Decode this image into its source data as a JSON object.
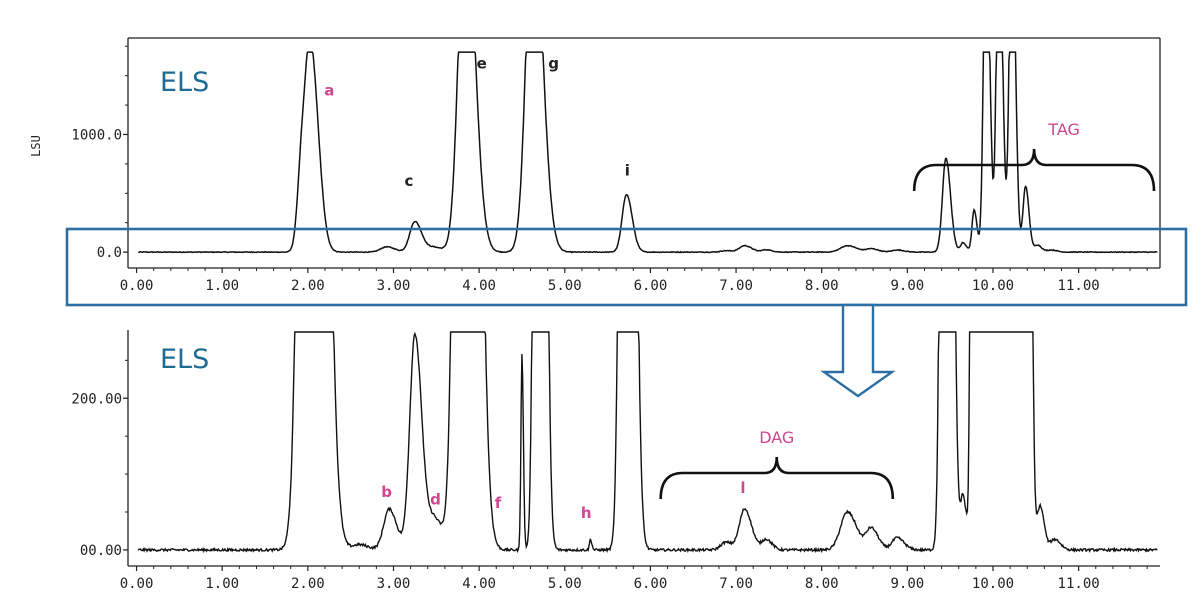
{
  "chart_data": [
    {
      "type": "line",
      "detector_label": "ELS",
      "ylabel": "LSU",
      "y_tick_labels": [
        "0.0",
        "1000.0"
      ],
      "y_ticks": [
        0,
        1000
      ],
      "ylim": [
        -50,
        1820
      ],
      "xlim": [
        -0.1,
        11.95
      ],
      "x_tick_labels": [
        "0.00",
        "1.00",
        "2.00",
        "3.00",
        "4.00",
        "5.00",
        "6.00",
        "7.00",
        "8.00",
        "9.00",
        "10.00",
        "11.00"
      ],
      "annotations": [
        {
          "label": "a",
          "x": 2.25,
          "y": 1330,
          "color": "pink"
        },
        {
          "label": "c",
          "x": 3.18,
          "y": 560,
          "color": "dark"
        },
        {
          "label": "e",
          "x": 4.03,
          "y": 1560,
          "color": "dark"
        },
        {
          "label": "g",
          "x": 4.87,
          "y": 1560,
          "color": "dark"
        },
        {
          "label": "i",
          "x": 5.73,
          "y": 650,
          "color": "dark"
        }
      ],
      "group": {
        "label": "TAG",
        "x_from": 9.08,
        "x_to": 11.88
      },
      "peaks": [
        {
          "x": 1.93,
          "y": 700,
          "w": 0.05
        },
        {
          "x": 2.04,
          "y": 1620,
          "w": 0.065
        },
        {
          "x": 2.92,
          "y": 45,
          "w": 0.07
        },
        {
          "x": 3.25,
          "y": 260,
          "w": 0.06
        },
        {
          "x": 3.48,
          "y": 40,
          "w": 0.07
        },
        {
          "x": 3.84,
          "y": 3000,
          "w": 0.08
        },
        {
          "x": 4.63,
          "y": 3000,
          "w": 0.08
        },
        {
          "x": 5.72,
          "y": 490,
          "w": 0.05
        },
        {
          "x": 6.88,
          "y": 12,
          "w": 0.06
        },
        {
          "x": 7.1,
          "y": 55,
          "w": 0.06
        },
        {
          "x": 7.35,
          "y": 20,
          "w": 0.05
        },
        {
          "x": 8.3,
          "y": 55,
          "w": 0.08
        },
        {
          "x": 8.58,
          "y": 28,
          "w": 0.06
        },
        {
          "x": 8.88,
          "y": 18,
          "w": 0.06
        },
        {
          "x": 9.45,
          "y": 800,
          "w": 0.04
        },
        {
          "x": 9.65,
          "y": 80,
          "w": 0.03
        },
        {
          "x": 9.78,
          "y": 360,
          "w": 0.025
        },
        {
          "x": 9.92,
          "y": 3000,
          "w": 0.03
        },
        {
          "x": 10.07,
          "y": 3000,
          "w": 0.03
        },
        {
          "x": 10.22,
          "y": 3000,
          "w": 0.03
        },
        {
          "x": 10.38,
          "y": 560,
          "w": 0.03
        },
        {
          "x": 10.52,
          "y": 60,
          "w": 0.035
        },
        {
          "x": 10.68,
          "y": 18,
          "w": 0.05
        }
      ],
      "clip_top": 1700,
      "noise": 3
    },
    {
      "type": "line",
      "detector_label": "ELS",
      "y_tick_labels": [
        "00.00",
        "200.00"
      ],
      "y_ticks": [
        0,
        200
      ],
      "ylim": [
        -8,
        290
      ],
      "xlim": [
        -0.1,
        11.95
      ],
      "x_tick_labels": [
        "0.00",
        "1.00",
        "2.00",
        "3.00",
        "4.00",
        "5.00",
        "6.00",
        "7.00",
        "8.00",
        "9.00",
        "10.00",
        "11.00"
      ],
      "annotations": [
        {
          "label": "b",
          "x": 2.92,
          "y": 70,
          "color": "pink"
        },
        {
          "label": "d",
          "x": 3.49,
          "y": 60,
          "color": "pink"
        },
        {
          "label": "f",
          "x": 4.22,
          "y": 55,
          "color": "pink"
        },
        {
          "label": "h",
          "x": 5.25,
          "y": 42,
          "color": "pink"
        },
        {
          "label": "l",
          "x": 7.08,
          "y": 75,
          "color": "pink"
        }
      ],
      "group": {
        "label": "DAG",
        "x_from": 6.12,
        "x_to": 8.83
      },
      "peaks": [
        {
          "x": 2.04,
          "y": 3000,
          "w": 0.09
        },
        {
          "x": 2.6,
          "y": 7,
          "w": 0.08
        },
        {
          "x": 2.95,
          "y": 54,
          "w": 0.065
        },
        {
          "x": 3.25,
          "y": 285,
          "w": 0.06
        },
        {
          "x": 3.48,
          "y": 40,
          "w": 0.07
        },
        {
          "x": 3.84,
          "y": 3000,
          "w": 0.08
        },
        {
          "x": 4.5,
          "y": 260,
          "w": 0.012
        },
        {
          "x": 4.7,
          "y": 3000,
          "w": 0.04
        },
        {
          "x": 5.3,
          "y": 14,
          "w": 0.012
        },
        {
          "x": 5.72,
          "y": 3000,
          "w": 0.05
        },
        {
          "x": 6.88,
          "y": 10,
          "w": 0.06
        },
        {
          "x": 7.1,
          "y": 54,
          "w": 0.06
        },
        {
          "x": 7.35,
          "y": 14,
          "w": 0.05
        },
        {
          "x": 8.3,
          "y": 50,
          "w": 0.08
        },
        {
          "x": 8.58,
          "y": 28,
          "w": 0.06
        },
        {
          "x": 8.88,
          "y": 16,
          "w": 0.06
        },
        {
          "x": 9.45,
          "y": 3000,
          "w": 0.04
        },
        {
          "x": 9.65,
          "y": 70,
          "w": 0.03
        },
        {
          "x": 9.78,
          "y": 3000,
          "w": 0.025
        },
        {
          "x": 9.92,
          "y": 3000,
          "w": 0.03
        },
        {
          "x": 10.07,
          "y": 3000,
          "w": 0.03
        },
        {
          "x": 10.22,
          "y": 3000,
          "w": 0.03
        },
        {
          "x": 10.38,
          "y": 3000,
          "w": 0.03
        },
        {
          "x": 10.55,
          "y": 58,
          "w": 0.035
        },
        {
          "x": 10.72,
          "y": 14,
          "w": 0.05
        }
      ],
      "clip_top": 3000,
      "noise": 1.6
    }
  ],
  "zoom_indicator": {
    "color": "#2e6fa3"
  }
}
